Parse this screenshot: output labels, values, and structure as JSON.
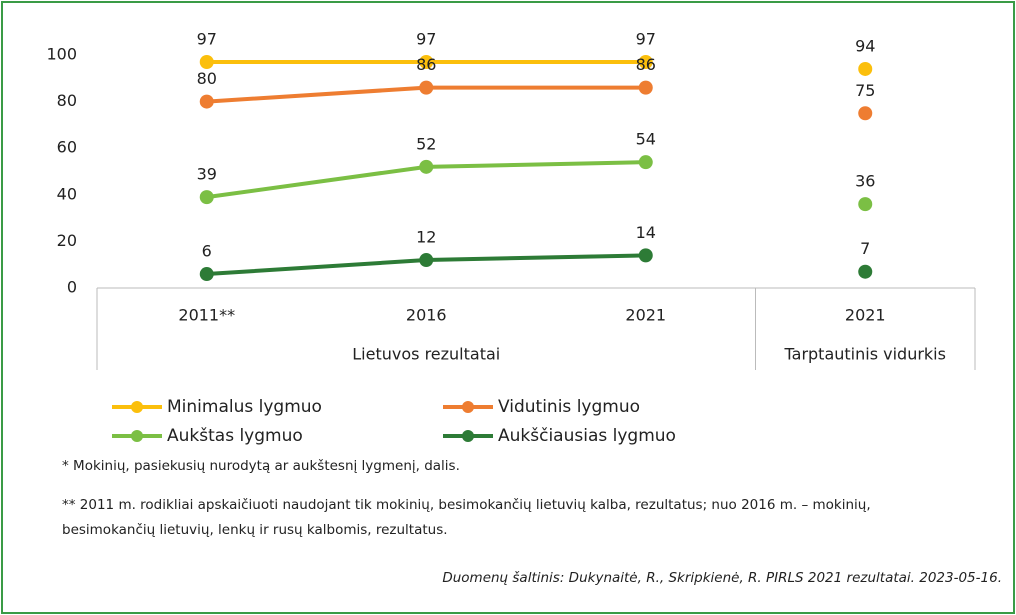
{
  "chart_data": {
    "type": "line",
    "groups": [
      {
        "name": "Lietuvos rezultatai",
        "categories": [
          "2011**",
          "2016",
          "2021"
        ]
      },
      {
        "name": "Tarptautinis vidurkis",
        "categories": [
          "2021"
        ]
      }
    ],
    "series": [
      {
        "name": "Minimalus lygmuo",
        "color": "#fbbf0c",
        "values": [
          97,
          97,
          97,
          94
        ]
      },
      {
        "name": "Vidutinis lygmuo",
        "color": "#ee7d31",
        "values": [
          80,
          86,
          86,
          75
        ]
      },
      {
        "name": "Aukštas lygmuo",
        "color": "#7bbf44",
        "values": [
          39,
          52,
          54,
          36
        ]
      },
      {
        "name": "Aukščiausias lygmuo",
        "color": "#2d7b36",
        "values": [
          6,
          12,
          14,
          7
        ]
      }
    ],
    "ylim": [
      0,
      100
    ],
    "yticks": [
      0,
      20,
      40,
      60,
      80,
      100
    ],
    "grid": false,
    "notes": [
      "* Mokinių, pasiekusių nurodytą ar aukštesnį lygmenį, dalis.",
      "** 2011 m. rodikliai apskaičiuoti naudojant tik mokinių, besimokančių lietuvių kalba, rezultatus; nuo 2016 m. – mokinių,",
      "besimokančių lietuvių, lenkų ir rusų kalbomis, rezultatus."
    ],
    "source": "Duomenų šaltinis: Dukynaitė, R., Skripkienė, R. PIRLS 2021 rezultatai. 2023-05-16."
  }
}
